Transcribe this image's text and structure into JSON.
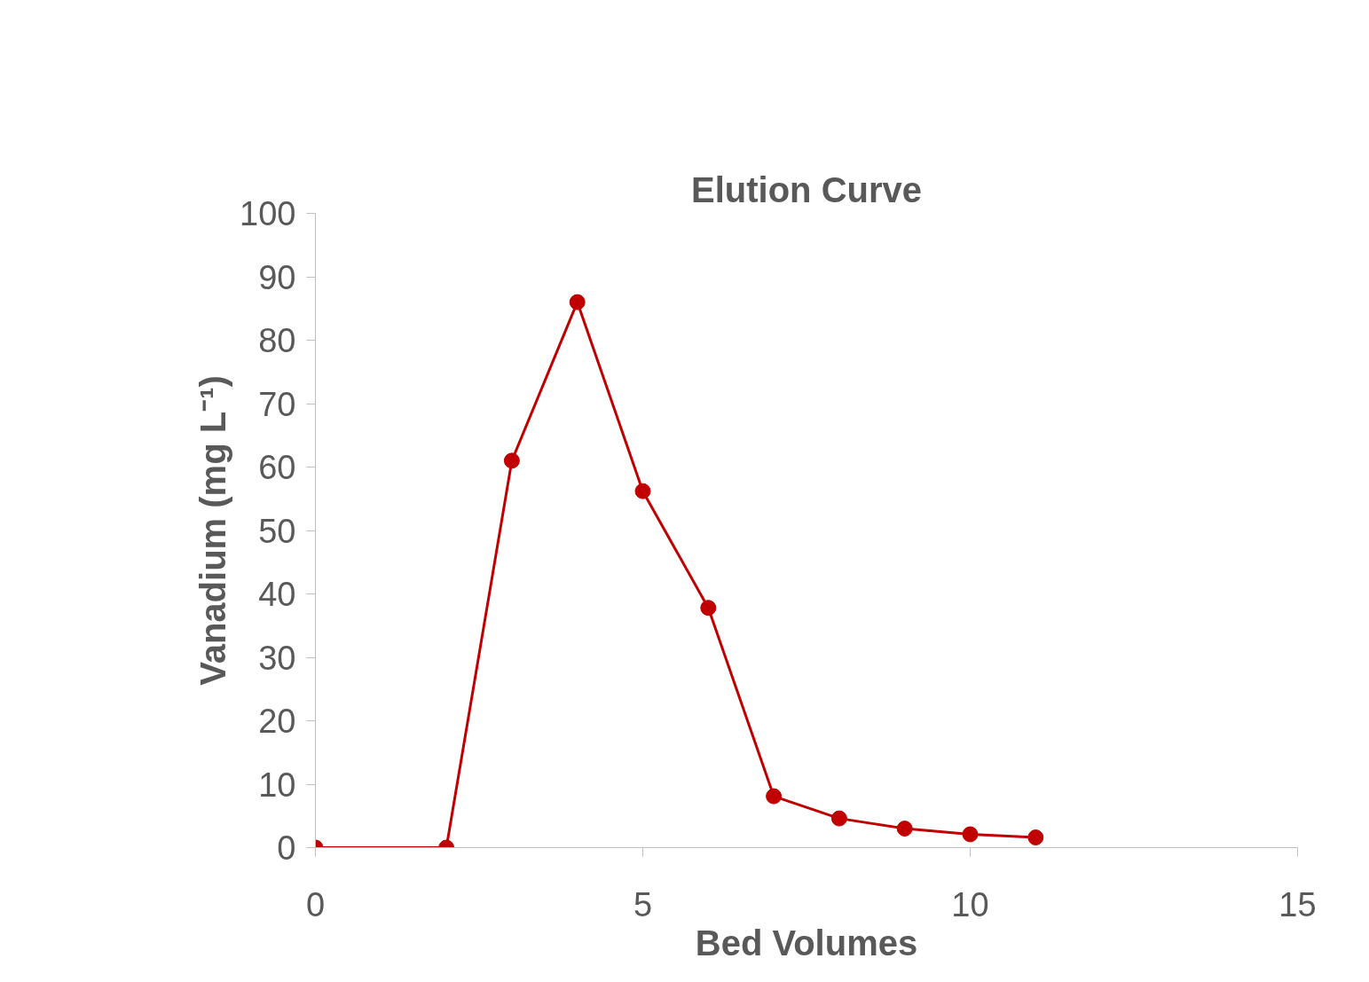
{
  "chart_data": {
    "type": "line",
    "title": "Elution Curve",
    "xlabel": "Bed Volumes",
    "ylabel": "Vanadium (mg L⁻¹)",
    "x": [
      0,
      2,
      3,
      4,
      5,
      6,
      7,
      8,
      9,
      10,
      11
    ],
    "series": [
      {
        "color": "#c00000",
        "values": [
          0,
          0,
          61,
          86,
          56.2,
          37.8,
          8.1,
          4.6,
          3,
          2.1,
          1.6
        ]
      }
    ],
    "xlim": [
      0,
      15
    ],
    "xticks": [
      0,
      5,
      10,
      15
    ],
    "ylim": [
      0,
      100
    ],
    "yticks": [
      0,
      10,
      20,
      30,
      40,
      50,
      60,
      70,
      80,
      90,
      100
    ],
    "grid": false,
    "marker": "circle",
    "line_style": "solid"
  }
}
